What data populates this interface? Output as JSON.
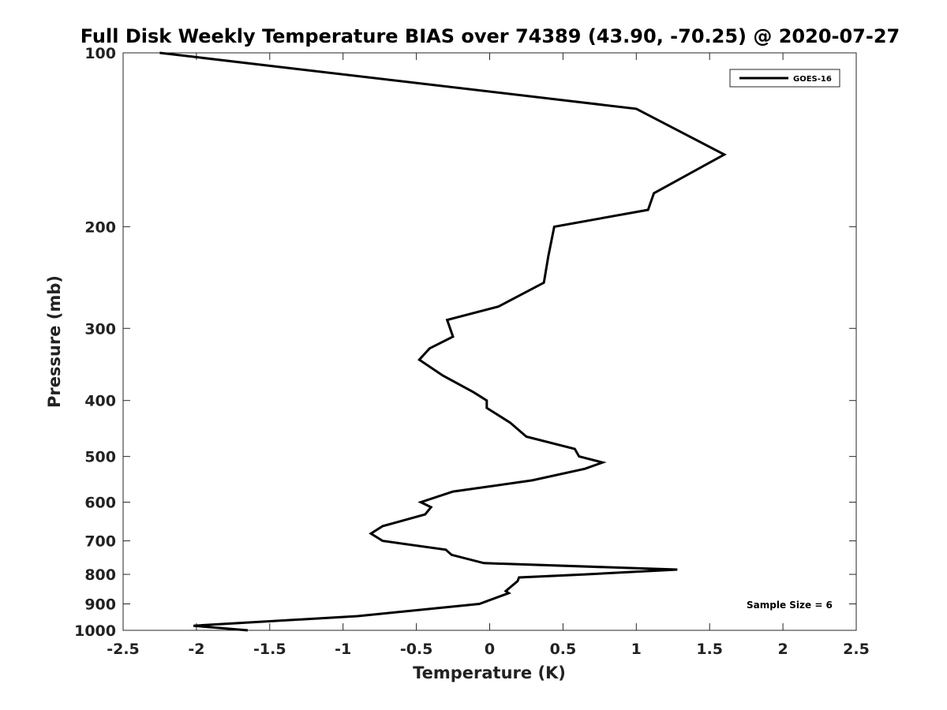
{
  "chart_data": {
    "type": "line",
    "title": "Full Disk Weekly Temperature BIAS over 74389 (43.90, -70.25) @ 2020-07-27",
    "xlabel": "Temperature (K)",
    "ylabel": "Pressure (mb)",
    "xlim": [
      -2.5,
      2.5
    ],
    "ylim": [
      100,
      1000
    ],
    "y_scale": "log",
    "y_reversed": true,
    "x_ticks": [
      -2.5,
      -2,
      -1.5,
      -1,
      -0.5,
      0,
      0.5,
      1,
      1.5,
      2,
      2.5
    ],
    "x_tick_labels": [
      "-2.5",
      "-2",
      "-1.5",
      "-1",
      "-0.5",
      "0",
      "0.5",
      "1",
      "1.5",
      "2",
      "2.5"
    ],
    "y_ticks": [
      100,
      200,
      300,
      400,
      500,
      600,
      700,
      800,
      900,
      1000
    ],
    "y_tick_labels": [
      "100",
      "200",
      "300",
      "400",
      "500",
      "600",
      "700",
      "800",
      "900",
      "1000"
    ],
    "grid": false,
    "legend_position": "top-right",
    "series": [
      {
        "name": "GOES-16",
        "color": "#000000",
        "points": [
          [
            -2.25,
            100
          ],
          [
            1.0,
            125
          ],
          [
            1.6,
            150
          ],
          [
            1.12,
            175
          ],
          [
            1.08,
            187
          ],
          [
            0.44,
            200
          ],
          [
            0.4,
            225
          ],
          [
            0.37,
            250
          ],
          [
            0.06,
            275
          ],
          [
            -0.29,
            290
          ],
          [
            -0.25,
            310
          ],
          [
            -0.41,
            325
          ],
          [
            -0.48,
            340
          ],
          [
            -0.32,
            362
          ],
          [
            -0.11,
            387
          ],
          [
            -0.02,
            400
          ],
          [
            -0.02,
            412
          ],
          [
            0.14,
            437
          ],
          [
            0.25,
            462
          ],
          [
            0.58,
            485
          ],
          [
            0.61,
            500
          ],
          [
            0.77,
            512
          ],
          [
            0.65,
            525
          ],
          [
            0.29,
            550
          ],
          [
            -0.25,
            575
          ],
          [
            -0.47,
            600
          ],
          [
            -0.4,
            612
          ],
          [
            -0.44,
            630
          ],
          [
            -0.73,
            660
          ],
          [
            -0.81,
            680
          ],
          [
            -0.73,
            700
          ],
          [
            -0.3,
            725
          ],
          [
            -0.26,
            740
          ],
          [
            -0.04,
            765
          ],
          [
            1.28,
            785
          ],
          [
            0.65,
            800
          ],
          [
            0.2,
            810
          ],
          [
            0.19,
            822
          ],
          [
            0.11,
            855
          ],
          [
            0.13,
            862
          ],
          [
            -0.07,
            900
          ],
          [
            -0.9,
            945
          ],
          [
            -2.02,
            982
          ],
          [
            -1.65,
            1000
          ]
        ]
      }
    ],
    "annotations": [
      {
        "text": "Sample Size = 6",
        "position": "bottom-right"
      }
    ]
  }
}
